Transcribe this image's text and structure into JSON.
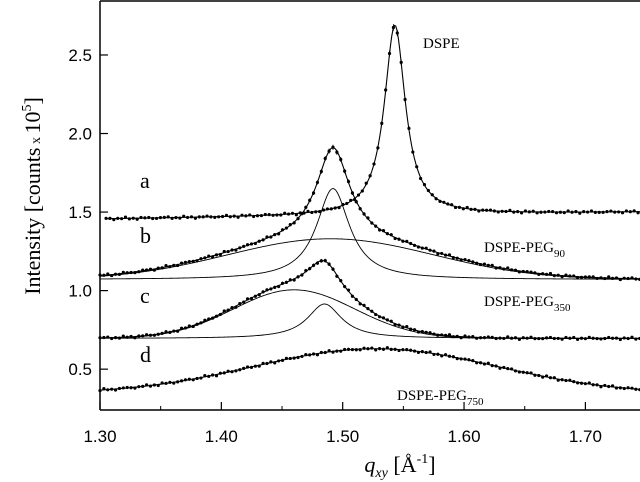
{
  "chart_data": {
    "type": "line",
    "title": "",
    "xlabel": {
      "main": "q",
      "sub": "xy",
      "unit": " [Å",
      "sup": "-1",
      "close": "]"
    },
    "ylabel": {
      "main": "Intensity [counts",
      "x": " x ",
      "base": "10",
      "sup": "5",
      "close": "]"
    },
    "xlim": [
      1.3,
      1.745
    ],
    "ylim": [
      0.24,
      2.85
    ],
    "xticks": [
      1.3,
      1.4,
      1.5,
      1.6,
      1.7
    ],
    "xtick_labels": [
      "1.30",
      "1.40",
      "1.50",
      "1.60",
      "1.70"
    ],
    "yticks": [
      0.5,
      1.0,
      1.5,
      2.0,
      2.5
    ],
    "ytick_labels": [
      "0.5",
      "1.0",
      "1.5",
      "2.0",
      "2.5"
    ],
    "grid": false,
    "legend": "none",
    "series": [
      {
        "letter": "a",
        "label_main": "DSPE",
        "label_sub": "",
        "baseline": 1.455,
        "slope": 0.1,
        "peaks": [
          {
            "center": 1.543,
            "amp": 1.21,
            "width": 0.0105,
            "shape": "lorentz"
          }
        ],
        "data_range": [
          1.305,
          1.745
        ],
        "components": []
      },
      {
        "letter": "b",
        "label_main": "DSPE-PEG",
        "label_sub": "90",
        "baseline": 1.07,
        "slope": 0.0,
        "peaks": [
          {
            "center": 1.492,
            "amp": 0.58,
            "width": 0.0165,
            "shape": "lorentz"
          },
          {
            "center": 1.49,
            "amp": 0.26,
            "width": 0.085,
            "shape": "gauss"
          }
        ],
        "data_range": [
          1.3,
          1.745
        ],
        "components": [
          [
            0
          ],
          [
            1
          ]
        ]
      },
      {
        "letter": "c",
        "label_main": "DSPE-PEG",
        "label_sub": "350",
        "baseline": 0.695,
        "slope": 0.0,
        "peaks": [
          {
            "center": 1.485,
            "amp": 0.22,
            "width": 0.017,
            "shape": "lorentz"
          },
          {
            "center": 1.46,
            "amp": 0.31,
            "width": 0.05,
            "shape": "gauss"
          }
        ],
        "data_range": [
          1.3,
          1.745
        ],
        "components": [
          [
            0
          ],
          [
            1
          ]
        ]
      },
      {
        "letter": "d",
        "label_main": "DSPE-PEG",
        "label_sub": "750",
        "baseline": 0.345,
        "slope": 0.0,
        "peaks": [
          {
            "center": 1.527,
            "amp": 0.285,
            "width": 0.1,
            "shape": "gauss"
          }
        ],
        "data_range": [
          1.3,
          1.745
        ],
        "components": []
      }
    ]
  }
}
